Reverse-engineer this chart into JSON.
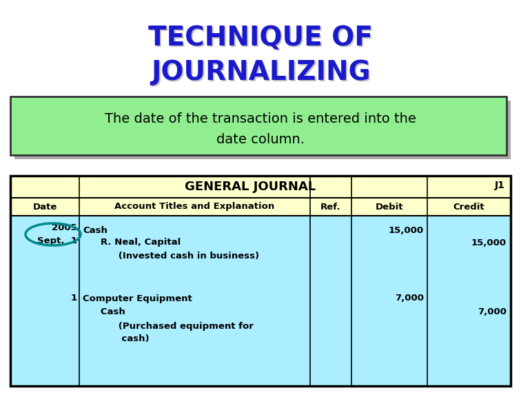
{
  "title_line1": "TECHNIQUE OF",
  "title_line2": "JOURNALIZING",
  "title_color": "#1a1acc",
  "subtitle_line1": "The date of the transaction is entered into the",
  "subtitle_line2": "date column.",
  "subtitle_bg": "#90ee90",
  "subtitle_border": "#555555",
  "table_header_bg": "#ffffcc",
  "table_body_bg": "#aaeeff",
  "table_border": "#000000",
  "journal_title": "GENERAL JOURNAL",
  "journal_ref": "J1",
  "col_headers": [
    "Date",
    "Account Titles and Explanation",
    "Ref.",
    "Debit",
    "Credit"
  ],
  "date_year": "2005",
  "date_day": "Sept.  1",
  "date2": "1",
  "row1_lines": [
    "Cash",
    "   R. Neal, Capital",
    "      (Invested cash in business)"
  ],
  "row1_debit": "15,000",
  "row1_credit": "15,000",
  "row2_lines": [
    "Computer Equipment",
    "   Cash",
    "      (Purchased equipment for",
    "       cash)"
  ],
  "row2_debit": "7,000",
  "row2_credit": "7,000",
  "circle_color": "#008888",
  "bg_color": "#ffffff",
  "shadow_color": "#aaaaaa"
}
